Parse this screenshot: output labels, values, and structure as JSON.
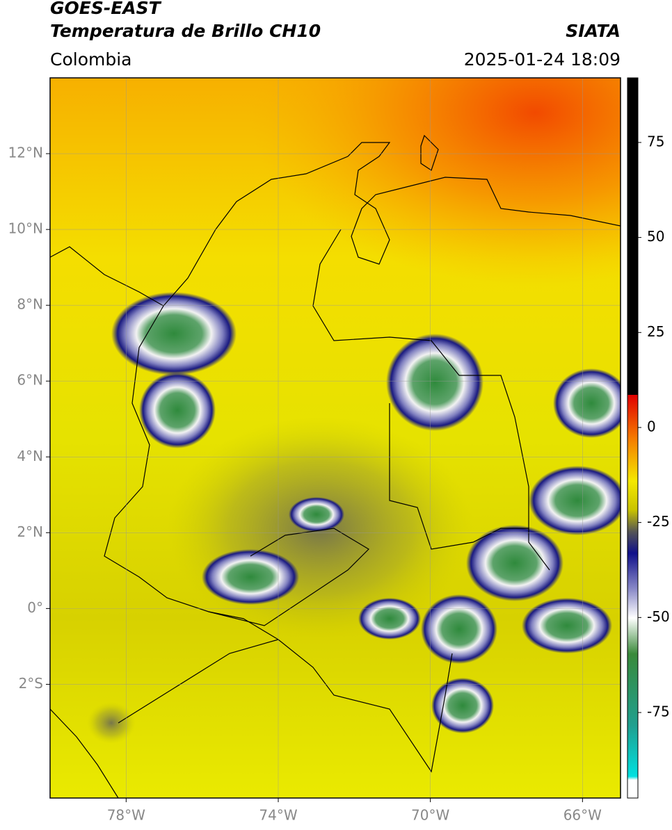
{
  "header": {
    "title": "GOES-EAST",
    "subtitle": "Temperatura de Brillo CH10",
    "source": "SIATA",
    "region": "Colombia",
    "datetime": "2025-01-24 18:09"
  },
  "map": {
    "lonlim": [
      -80,
      -65
    ],
    "latlim": [
      -5,
      14
    ],
    "xticks": [
      {
        "value": -78,
        "label": "78°W"
      },
      {
        "value": -74,
        "label": "74°W"
      },
      {
        "value": -70,
        "label": "70°W"
      },
      {
        "value": -66,
        "label": "66°W"
      }
    ],
    "yticks": [
      {
        "value": 12,
        "label": "12°N"
      },
      {
        "value": 10,
        "label": "10°N"
      },
      {
        "value": 8,
        "label": "8°N"
      },
      {
        "value": 6,
        "label": "6°N"
      },
      {
        "value": 4,
        "label": "4°N"
      },
      {
        "value": 2,
        "label": "2°N"
      },
      {
        "value": 0,
        "label": "0°"
      },
      {
        "value": -2,
        "label": "2°S"
      }
    ],
    "grid": true
  },
  "colorbar": {
    "lim": [
      -97.5,
      92
    ],
    "ticks": [
      75,
      50,
      25,
      0,
      -25,
      -50,
      -75
    ]
  }
}
